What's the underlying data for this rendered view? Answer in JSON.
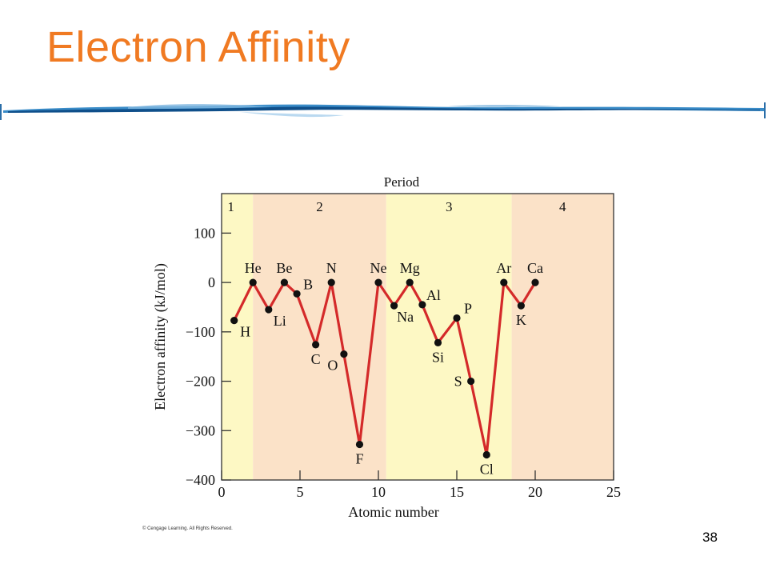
{
  "slide": {
    "title": "Electron Affinity",
    "page_number": "38",
    "copyright": "© Cengage Learning. All Rights Reserved."
  },
  "colors": {
    "title": "#f07a22",
    "line": "#d42a2a",
    "period_odd": "#fdf8c4",
    "period_even": "#fbe2c8",
    "point": "#111111"
  },
  "chart_data": {
    "type": "line",
    "title": "Period",
    "xlabel": "Atomic number",
    "ylabel": "Electron affinity (kJ/mol)",
    "xlim": [
      0,
      25
    ],
    "ylim": [
      -400,
      180
    ],
    "x_ticks": [
      0,
      5,
      10,
      15,
      20,
      25
    ],
    "y_ticks": [
      100,
      0,
      -100,
      -200,
      -300,
      -400
    ],
    "y_tick_labels": [
      "100",
      "0",
      "−100",
      "−200",
      "−300",
      "−400"
    ],
    "periods": [
      {
        "label": "1",
        "x_start": 0,
        "x_end": 2
      },
      {
        "label": "2",
        "x_start": 2,
        "x_end": 10.5
      },
      {
        "label": "3",
        "x_start": 10.5,
        "x_end": 18.5
      },
      {
        "label": "4",
        "x_start": 18.5,
        "x_end": 25
      }
    ],
    "points": [
      {
        "label": "H",
        "x": 0.8,
        "y": -77,
        "label_pos": "below-right"
      },
      {
        "label": "He",
        "x": 2,
        "y": 0,
        "label_pos": "above"
      },
      {
        "label": "Li",
        "x": 3,
        "y": -55,
        "label_pos": "below-right"
      },
      {
        "label": "Be",
        "x": 4,
        "y": 0,
        "label_pos": "above"
      },
      {
        "label": "B",
        "x": 4.8,
        "y": -23,
        "label_pos": "above-right"
      },
      {
        "label": "C",
        "x": 6,
        "y": -126,
        "label_pos": "below"
      },
      {
        "label": "N",
        "x": 7,
        "y": 0,
        "label_pos": "above"
      },
      {
        "label": "O",
        "x": 7.8,
        "y": -145,
        "label_pos": "below-left"
      },
      {
        "label": "F",
        "x": 8.8,
        "y": -328,
        "label_pos": "below"
      },
      {
        "label": "Ne",
        "x": 10,
        "y": 0,
        "label_pos": "above"
      },
      {
        "label": "Na",
        "x": 11,
        "y": -47,
        "label_pos": "below-right"
      },
      {
        "label": "Mg",
        "x": 12,
        "y": 0,
        "label_pos": "above"
      },
      {
        "label": "Al",
        "x": 12.8,
        "y": -45,
        "label_pos": "above-right"
      },
      {
        "label": "Si",
        "x": 13.8,
        "y": -122,
        "label_pos": "below"
      },
      {
        "label": "P",
        "x": 15,
        "y": -72,
        "label_pos": "above-right"
      },
      {
        "label": "S",
        "x": 15.9,
        "y": -200,
        "label_pos": "left"
      },
      {
        "label": "Cl",
        "x": 16.9,
        "y": -349,
        "label_pos": "below"
      },
      {
        "label": "Ar",
        "x": 18,
        "y": 0,
        "label_pos": "above"
      },
      {
        "label": "K",
        "x": 19.1,
        "y": -47,
        "label_pos": "below"
      },
      {
        "label": "Ca",
        "x": 20,
        "y": 0,
        "label_pos": "above"
      }
    ]
  }
}
